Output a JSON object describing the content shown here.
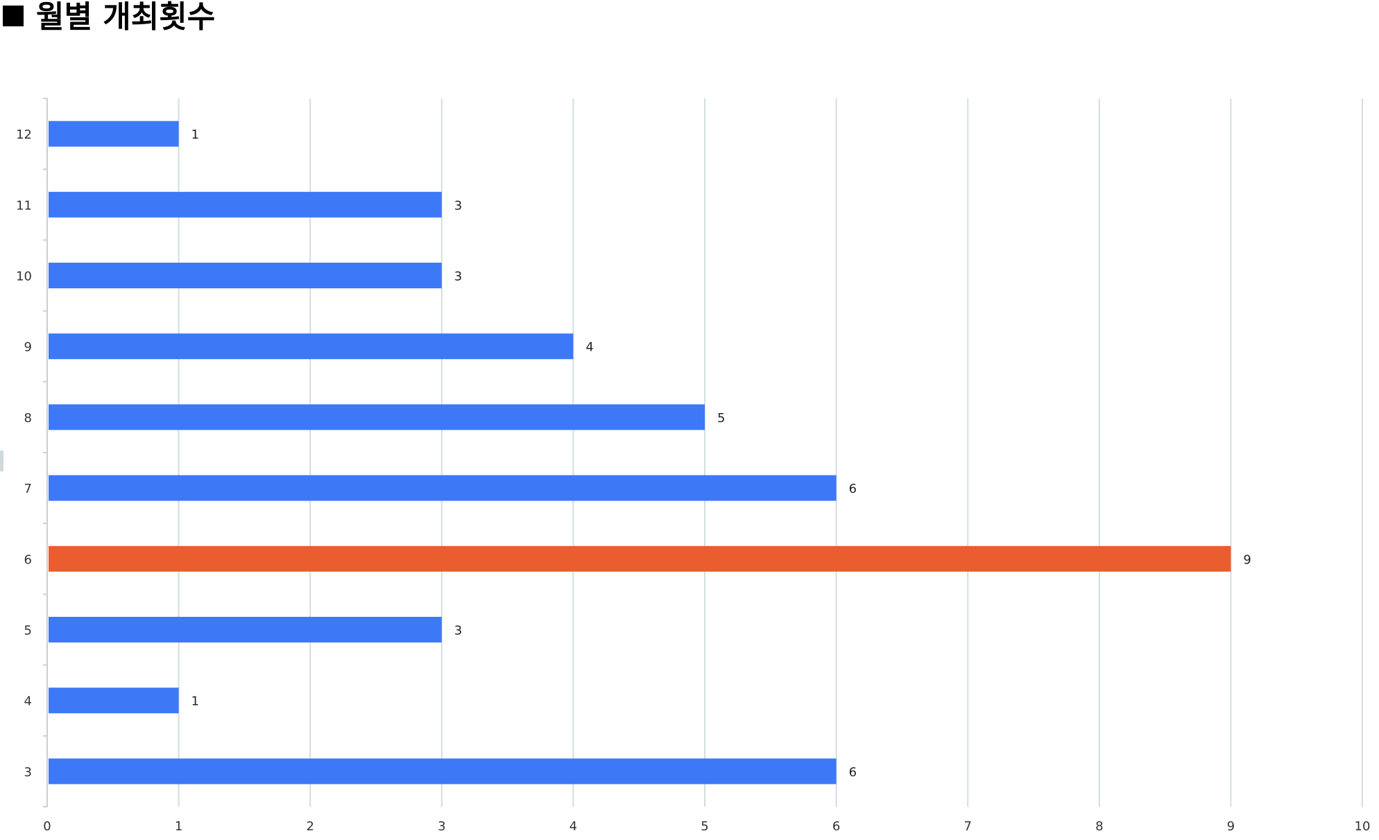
{
  "title": "월별 개최횟수",
  "chart_data": {
    "type": "bar",
    "orientation": "horizontal",
    "title": "월별 개최횟수",
    "categories": [
      "3",
      "4",
      "5",
      "6",
      "7",
      "8",
      "9",
      "10",
      "11",
      "12"
    ],
    "values": [
      6,
      1,
      3,
      9,
      6,
      5,
      4,
      3,
      3,
      1
    ],
    "highlight_category": "6",
    "xlim": [
      0,
      10
    ],
    "x_ticks": [
      0,
      1,
      2,
      3,
      4,
      5,
      6,
      7,
      8,
      9,
      10
    ],
    "xlabel": "",
    "ylabel": "",
    "grid": "vertical",
    "data_labels": true,
    "legend": "none",
    "colors": {
      "bar": "#3d78f7",
      "highlight": "#e95d2e",
      "grid": "#d3dde0",
      "axis": "#c8d0d4"
    }
  }
}
